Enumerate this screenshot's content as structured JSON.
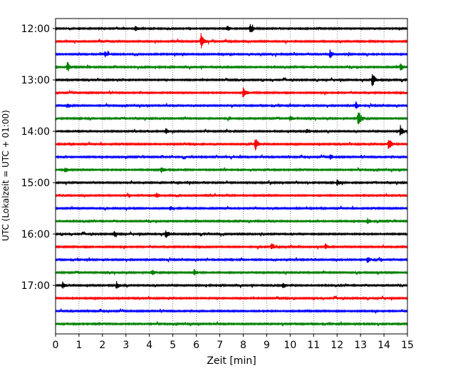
{
  "chart_data": {
    "type": "line",
    "subtype": "helicorder",
    "xlabel": "Zeit  [min]",
    "ylabel": "UTC (Lokalzeit = UTC + 01:00)",
    "xlim": [
      0,
      15
    ],
    "x_ticks": [
      0,
      1,
      2,
      3,
      4,
      5,
      6,
      7,
      8,
      9,
      10,
      11,
      12,
      13,
      14,
      15
    ],
    "grid": "vertical dotted at each minute",
    "trace_interval_minutes": 15,
    "trace_count": 24,
    "trace_colors": [
      "#000000",
      "#ff0000",
      "#0000ff",
      "#008000"
    ],
    "y_tick_labels": [
      {
        "trace": 0,
        "label": "12:00"
      },
      {
        "trace": 4,
        "label": "13:00"
      },
      {
        "trace": 8,
        "label": "14:00"
      },
      {
        "trace": 12,
        "label": "15:00"
      },
      {
        "trace": 16,
        "label": "16:00"
      },
      {
        "trace": 20,
        "label": "17:00"
      }
    ],
    "events": [
      {
        "trace": 0,
        "x": 8.3,
        "amp": 7
      },
      {
        "trace": 0,
        "x": 7.3,
        "amp": 4
      },
      {
        "trace": 0,
        "x": 3.4,
        "amp": 4
      },
      {
        "trace": 1,
        "x": 6.2,
        "amp": 11
      },
      {
        "trace": 2,
        "x": 11.7,
        "amp": 6
      },
      {
        "trace": 2,
        "x": 2.1,
        "amp": 4
      },
      {
        "trace": 3,
        "x": 0.5,
        "amp": 8
      },
      {
        "trace": 3,
        "x": 14.7,
        "amp": 6
      },
      {
        "trace": 4,
        "x": 13.5,
        "amp": 10
      },
      {
        "trace": 5,
        "x": 8.0,
        "amp": 8
      },
      {
        "trace": 6,
        "x": 12.8,
        "amp": 5
      },
      {
        "trace": 6,
        "x": 0.5,
        "amp": 4
      },
      {
        "trace": 7,
        "x": 12.9,
        "amp": 12
      },
      {
        "trace": 7,
        "x": 10.0,
        "amp": 4
      },
      {
        "trace": 8,
        "x": 14.7,
        "amp": 8
      },
      {
        "trace": 8,
        "x": 4.7,
        "amp": 4
      },
      {
        "trace": 8,
        "x": 10.7,
        "amp": 4
      },
      {
        "trace": 9,
        "x": 8.5,
        "amp": 10
      },
      {
        "trace": 9,
        "x": 14.2,
        "amp": 9
      },
      {
        "trace": 10,
        "x": 11.7,
        "amp": 4
      },
      {
        "trace": 11,
        "x": 4.5,
        "amp": 5
      },
      {
        "trace": 11,
        "x": 0.4,
        "amp": 4
      },
      {
        "trace": 12,
        "x": 12.0,
        "amp": 4
      },
      {
        "trace": 13,
        "x": 4.3,
        "amp": 4
      },
      {
        "trace": 14,
        "x": 4.9,
        "amp": 4
      },
      {
        "trace": 15,
        "x": 13.3,
        "amp": 4
      },
      {
        "trace": 16,
        "x": 4.7,
        "amp": 6
      },
      {
        "trace": 16,
        "x": 2.5,
        "amp": 4
      },
      {
        "trace": 17,
        "x": 9.2,
        "amp": 5
      },
      {
        "trace": 17,
        "x": 11.5,
        "amp": 4
      },
      {
        "trace": 18,
        "x": 13.3,
        "amp": 5
      },
      {
        "trace": 19,
        "x": 5.9,
        "amp": 5
      },
      {
        "trace": 19,
        "x": 4.1,
        "amp": 4
      },
      {
        "trace": 20,
        "x": 2.6,
        "amp": 5
      },
      {
        "trace": 20,
        "x": 0.3,
        "amp": 5
      },
      {
        "trace": 20,
        "x": 9.7,
        "amp": 4
      }
    ]
  }
}
